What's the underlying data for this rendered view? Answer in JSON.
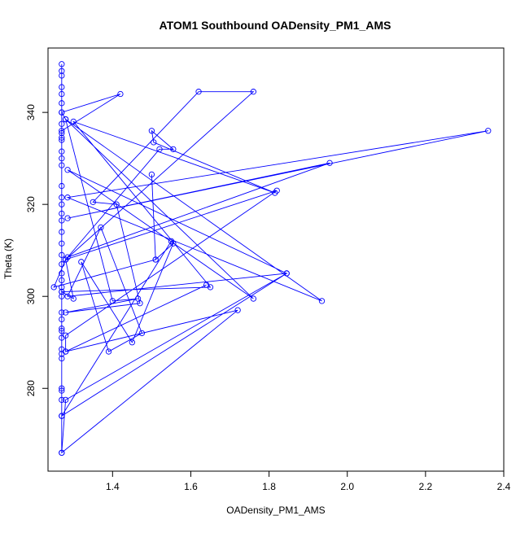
{
  "chart_data": {
    "type": "line",
    "title": "ATOM1 Southbound OADensity_PM1_AMS",
    "xlabel": "OADensity_PM1_AMS",
    "ylabel": "Theta (K)",
    "xlim": [
      1.235,
      2.4
    ],
    "ylim": [
      262,
      354
    ],
    "x_ticks": [
      1.4,
      1.6,
      1.8,
      2.0,
      2.2,
      2.4
    ],
    "x_tick_labels": [
      "1.4",
      "1.6",
      "1.8",
      "2.0",
      "2.2",
      "2.4"
    ],
    "y_ticks": [
      280,
      300,
      320,
      340
    ],
    "y_tick_labels": [
      "280",
      "300",
      "320",
      "340"
    ],
    "grid": false,
    "series": [
      {
        "color": "#0000ff",
        "marker": "open-circle",
        "points": [
          [
            1.27,
            266.0
          ],
          [
            1.27,
            274.0
          ],
          [
            1.27,
            277.5
          ],
          [
            1.27,
            279.5
          ],
          [
            1.27,
            280.0
          ],
          [
            1.27,
            286.5
          ],
          [
            1.27,
            287.5
          ],
          [
            1.27,
            288.5
          ],
          [
            1.27,
            291.0
          ],
          [
            1.27,
            292.5
          ],
          [
            1.27,
            293.0
          ],
          [
            1.27,
            295.0
          ],
          [
            1.27,
            296.5
          ],
          [
            1.27,
            300.0
          ],
          [
            1.27,
            301.0
          ],
          [
            1.27,
            302.0
          ],
          [
            1.27,
            303.5
          ],
          [
            1.27,
            305.0
          ],
          [
            1.27,
            307.0
          ],
          [
            1.27,
            309.0
          ],
          [
            1.27,
            311.5
          ],
          [
            1.27,
            314.0
          ],
          [
            1.27,
            316.5
          ],
          [
            1.27,
            318.0
          ],
          [
            1.27,
            320.0
          ],
          [
            1.27,
            321.5
          ],
          [
            1.27,
            324.0
          ],
          [
            1.27,
            328.5
          ],
          [
            1.27,
            330.0
          ],
          [
            1.27,
            331.5
          ],
          [
            1.27,
            334.0
          ],
          [
            1.27,
            335.5
          ],
          [
            1.27,
            337.5
          ],
          [
            1.27,
            340.0
          ],
          [
            1.27,
            342.0
          ],
          [
            1.27,
            344.0
          ],
          [
            1.27,
            345.5
          ],
          [
            1.27,
            348.0
          ],
          [
            1.27,
            349.0
          ],
          [
            1.27,
            350.5
          ],
          [
            1.27,
            334.5
          ],
          [
            1.27,
            336.0
          ],
          [
            1.42,
            344.0
          ],
          [
            1.27,
            340.0
          ],
          [
            1.28,
            338.5
          ],
          [
            1.4,
            299.0
          ],
          [
            1.465,
            299.5
          ],
          [
            1.28,
            296.5
          ],
          [
            1.47,
            298.5
          ],
          [
            1.41,
            320.0
          ],
          [
            1.35,
            320.5
          ],
          [
            1.62,
            344.5
          ],
          [
            1.76,
            344.5
          ],
          [
            1.28,
            308.0
          ],
          [
            1.52,
            332.0
          ],
          [
            1.555,
            332.0
          ],
          [
            1.5,
            336.0
          ],
          [
            1.505,
            333.5
          ],
          [
            1.815,
            322.5
          ],
          [
            1.3,
            338.0
          ],
          [
            1.65,
            302.0
          ],
          [
            1.27,
            301.0
          ],
          [
            1.3,
            299.5
          ],
          [
            1.28,
            308.0
          ],
          [
            1.25,
            302.0
          ],
          [
            1.51,
            308.0
          ],
          [
            1.5,
            326.5
          ],
          [
            1.51,
            308.0
          ],
          [
            1.555,
            311.5
          ],
          [
            1.45,
            290.0
          ],
          [
            1.32,
            307.5
          ],
          [
            1.39,
            288.0
          ],
          [
            1.475,
            292.0
          ],
          [
            1.37,
            315.0
          ],
          [
            1.285,
            300.0
          ],
          [
            1.845,
            305.0
          ],
          [
            1.285,
            327.5
          ],
          [
            1.76,
            299.5
          ],
          [
            1.28,
            338.5
          ],
          [
            1.935,
            299.0
          ],
          [
            1.285,
            321.5
          ],
          [
            2.36,
            336.0
          ],
          [
            1.285,
            317.0
          ],
          [
            1.955,
            329.0
          ],
          [
            1.285,
            308.5
          ],
          [
            1.28,
            308.0
          ],
          [
            1.82,
            323.0
          ],
          [
            1.28,
            291.5
          ],
          [
            1.28,
            288.0
          ],
          [
            1.64,
            302.5
          ],
          [
            1.28,
            288.0
          ],
          [
            1.72,
            297.0
          ],
          [
            1.27,
            266.0
          ],
          [
            1.28,
            277.5
          ],
          [
            1.845,
            305.0
          ],
          [
            1.27,
            274.0
          ],
          [
            1.55,
            312.0
          ]
        ]
      }
    ]
  }
}
